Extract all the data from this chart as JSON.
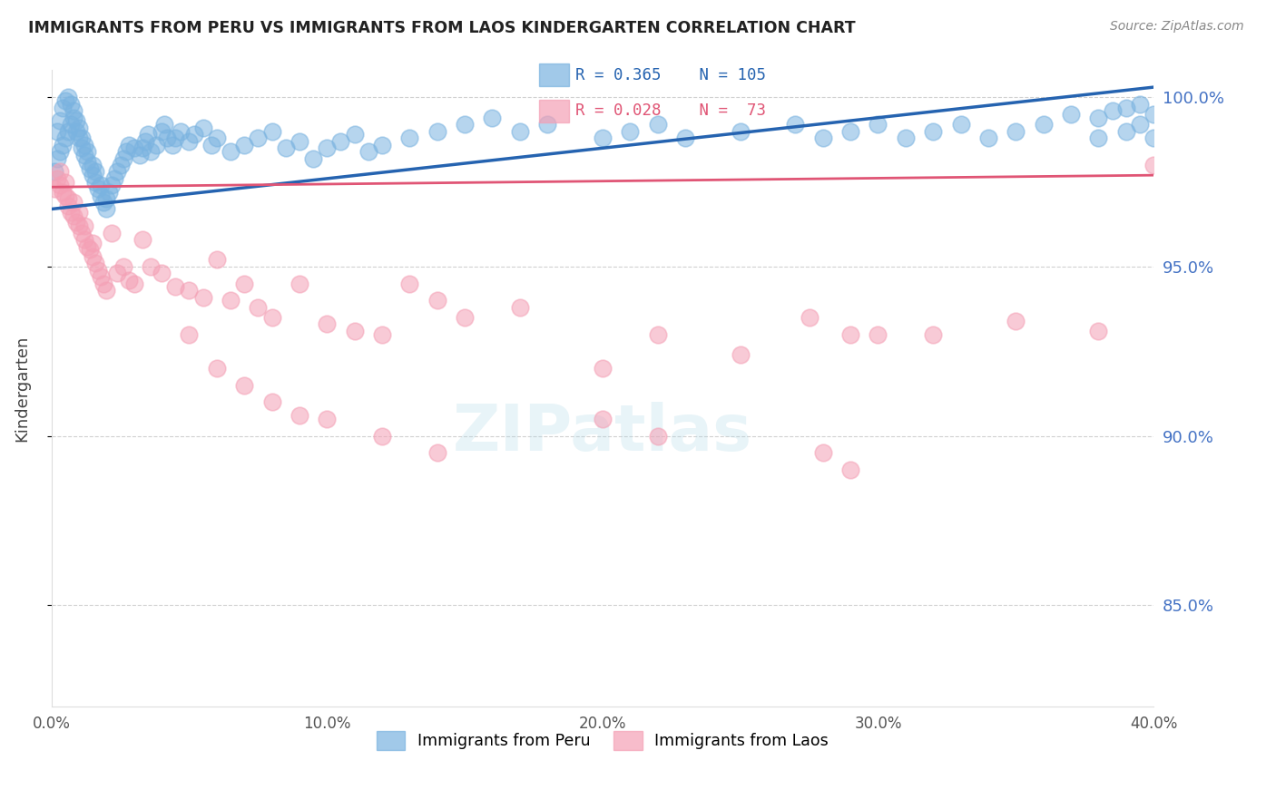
{
  "title": "IMMIGRANTS FROM PERU VS IMMIGRANTS FROM LAOS KINDERGARTEN CORRELATION CHART",
  "source": "Source: ZipAtlas.com",
  "ylabel": "Kindergarten",
  "xlim": [
    0.0,
    0.4
  ],
  "ylim": [
    0.82,
    1.008
  ],
  "yticks": [
    0.85,
    0.9,
    0.95,
    1.0
  ],
  "ytick_labels": [
    "85.0%",
    "90.0%",
    "95.0%",
    "100.0%"
  ],
  "xticks": [
    0.0,
    0.1,
    0.2,
    0.3,
    0.4
  ],
  "xtick_labels": [
    "0.0%",
    "10.0%",
    "20.0%",
    "30.0%",
    "40.0%"
  ],
  "peru_color": "#7ab3e0",
  "laos_color": "#f4a0b5",
  "peru_line_color": "#2563b0",
  "laos_line_color": "#e05575",
  "peru_R": 0.365,
  "peru_N": 105,
  "laos_R": 0.028,
  "laos_N": 73,
  "legend_peru": "Immigrants from Peru",
  "legend_laos": "Immigrants from Laos",
  "background_color": "#ffffff",
  "peru_line_y0": 0.967,
  "peru_line_y1": 1.003,
  "laos_line_y0": 0.9735,
  "laos_line_y1": 0.977,
  "peru_x": [
    0.001,
    0.002,
    0.002,
    0.003,
    0.003,
    0.004,
    0.004,
    0.005,
    0.005,
    0.006,
    0.006,
    0.007,
    0.007,
    0.008,
    0.008,
    0.009,
    0.009,
    0.01,
    0.01,
    0.011,
    0.011,
    0.012,
    0.012,
    0.013,
    0.013,
    0.014,
    0.015,
    0.015,
    0.016,
    0.016,
    0.017,
    0.018,
    0.018,
    0.019,
    0.02,
    0.02,
    0.021,
    0.022,
    0.023,
    0.024,
    0.025,
    0.026,
    0.027,
    0.028,
    0.03,
    0.032,
    0.033,
    0.034,
    0.035,
    0.036,
    0.038,
    0.04,
    0.041,
    0.042,
    0.044,
    0.045,
    0.047,
    0.05,
    0.052,
    0.055,
    0.058,
    0.06,
    0.065,
    0.07,
    0.075,
    0.08,
    0.085,
    0.09,
    0.095,
    0.1,
    0.105,
    0.11,
    0.115,
    0.12,
    0.13,
    0.14,
    0.15,
    0.16,
    0.17,
    0.18,
    0.2,
    0.21,
    0.22,
    0.23,
    0.25,
    0.27,
    0.28,
    0.29,
    0.3,
    0.31,
    0.32,
    0.33,
    0.34,
    0.35,
    0.36,
    0.37,
    0.38,
    0.39,
    0.395,
    0.4,
    0.4,
    0.395,
    0.39,
    0.385,
    0.38
  ],
  "peru_y": [
    0.978,
    0.982,
    0.99,
    0.984,
    0.993,
    0.986,
    0.997,
    0.988,
    0.999,
    0.99,
    1.0,
    0.992,
    0.998,
    0.994,
    0.996,
    0.99,
    0.993,
    0.988,
    0.991,
    0.985,
    0.988,
    0.983,
    0.986,
    0.981,
    0.984,
    0.979,
    0.977,
    0.98,
    0.975,
    0.978,
    0.973,
    0.971,
    0.974,
    0.969,
    0.967,
    0.97,
    0.972,
    0.974,
    0.976,
    0.978,
    0.98,
    0.982,
    0.984,
    0.986,
    0.985,
    0.983,
    0.985,
    0.987,
    0.989,
    0.984,
    0.986,
    0.99,
    0.992,
    0.988,
    0.986,
    0.988,
    0.99,
    0.987,
    0.989,
    0.991,
    0.986,
    0.988,
    0.984,
    0.986,
    0.988,
    0.99,
    0.985,
    0.987,
    0.982,
    0.985,
    0.987,
    0.989,
    0.984,
    0.986,
    0.988,
    0.99,
    0.992,
    0.994,
    0.99,
    0.992,
    0.988,
    0.99,
    0.992,
    0.988,
    0.99,
    0.992,
    0.988,
    0.99,
    0.992,
    0.988,
    0.99,
    0.992,
    0.988,
    0.99,
    0.992,
    0.995,
    0.988,
    0.99,
    0.992,
    0.988,
    0.995,
    0.998,
    0.997,
    0.996,
    0.994
  ],
  "laos_x": [
    0.001,
    0.002,
    0.003,
    0.003,
    0.004,
    0.005,
    0.005,
    0.006,
    0.006,
    0.007,
    0.008,
    0.008,
    0.009,
    0.01,
    0.01,
    0.011,
    0.012,
    0.012,
    0.013,
    0.014,
    0.015,
    0.015,
    0.016,
    0.017,
    0.018,
    0.019,
    0.02,
    0.022,
    0.024,
    0.026,
    0.028,
    0.03,
    0.033,
    0.036,
    0.04,
    0.045,
    0.05,
    0.055,
    0.06,
    0.065,
    0.07,
    0.075,
    0.08,
    0.09,
    0.1,
    0.11,
    0.12,
    0.13,
    0.14,
    0.15,
    0.17,
    0.2,
    0.22,
    0.25,
    0.275,
    0.29,
    0.3,
    0.32,
    0.35,
    0.38,
    0.4,
    0.06,
    0.07,
    0.08,
    0.09,
    0.1,
    0.12,
    0.14,
    0.2,
    0.22,
    0.28,
    0.29,
    0.05
  ],
  "laos_y": [
    0.973,
    0.976,
    0.978,
    0.974,
    0.972,
    0.971,
    0.975,
    0.97,
    0.968,
    0.966,
    0.965,
    0.969,
    0.963,
    0.962,
    0.966,
    0.96,
    0.958,
    0.962,
    0.956,
    0.955,
    0.953,
    0.957,
    0.951,
    0.949,
    0.947,
    0.945,
    0.943,
    0.96,
    0.948,
    0.95,
    0.946,
    0.945,
    0.958,
    0.95,
    0.948,
    0.944,
    0.943,
    0.941,
    0.952,
    0.94,
    0.945,
    0.938,
    0.935,
    0.945,
    0.933,
    0.931,
    0.93,
    0.945,
    0.94,
    0.935,
    0.938,
    0.92,
    0.93,
    0.924,
    0.935,
    0.93,
    0.93,
    0.93,
    0.934,
    0.931,
    0.98,
    0.92,
    0.915,
    0.91,
    0.906,
    0.905,
    0.9,
    0.895,
    0.905,
    0.9,
    0.895,
    0.89,
    0.93
  ]
}
